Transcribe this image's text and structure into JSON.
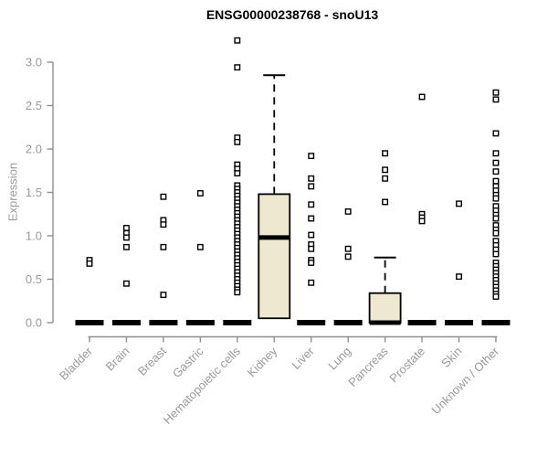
{
  "title": "ENSG00000238768 - snoU13",
  "colors": {
    "box_fill": "#ede8cf",
    "stroke": "#000000",
    "marker_fill": "#ffffff",
    "axis": "#8f8f8f",
    "label": "#9a9a9a",
    "title": "#000000",
    "background": "#ffffff"
  },
  "chart_data": {
    "type": "boxplot",
    "title": "ENSG00000238768 - snoU13",
    "xlabel": "",
    "ylabel": "Expression",
    "ylim": [
      0,
      3.3
    ],
    "yticks": [
      "0.0",
      "0.5",
      "1.0",
      "1.5",
      "2.0",
      "2.5",
      "3.0"
    ],
    "grid": false,
    "legend": "none",
    "categories": [
      "Bladder",
      "Brain",
      "Breast",
      "Gastric",
      "Hematopoietic cells",
      "Kidney",
      "Liver",
      "Lung",
      "Pancreas",
      "Prostate",
      "Skin",
      "Unknown / Other"
    ],
    "series": [
      {
        "name": "Bladder",
        "q1": 0,
        "median": 0,
        "q3": 0,
        "outliers": [
          0.72,
          0.68
        ]
      },
      {
        "name": "Brain",
        "q1": 0,
        "median": 0,
        "q3": 0,
        "outliers": [
          1.09,
          1.03,
          0.98,
          0.87,
          0.45
        ]
      },
      {
        "name": "Breast",
        "q1": 0,
        "median": 0,
        "q3": 0,
        "outliers": [
          1.45,
          1.18,
          1.13,
          0.87,
          0.32
        ]
      },
      {
        "name": "Gastric",
        "q1": 0,
        "median": 0,
        "q3": 0,
        "outliers": [
          1.49,
          0.87
        ]
      },
      {
        "name": "Hematopoietic cells",
        "q1": 0,
        "median": 0,
        "q3": 0,
        "outliers": [
          3.25,
          2.94,
          2.13,
          2.08,
          1.82,
          1.77,
          1.72,
          1.58,
          1.54,
          1.5,
          1.46,
          1.42,
          1.38,
          1.34,
          1.3,
          1.26,
          1.22,
          1.18,
          1.14,
          1.1,
          1.06,
          1.02,
          0.98,
          0.94,
          0.9,
          0.86,
          0.82,
          0.78,
          0.74,
          0.7,
          0.66,
          0.62,
          0.58,
          0.54,
          0.5,
          0.46,
          0.42,
          0.38,
          0.35
        ]
      },
      {
        "name": "Kidney",
        "q1": 0.05,
        "median": 0.98,
        "q3": 1.48,
        "whisker_high": 2.85,
        "outliers": []
      },
      {
        "name": "Liver",
        "q1": 0,
        "median": 0,
        "q3": 0,
        "outliers": [
          1.92,
          1.66,
          1.57,
          1.36,
          1.2,
          1.01,
          0.9,
          0.85,
          0.72,
          0.69,
          0.46
        ]
      },
      {
        "name": "Lung",
        "q1": 0,
        "median": 0,
        "q3": 0,
        "outliers": [
          1.28,
          0.85,
          0.76
        ]
      },
      {
        "name": "Pancreas",
        "q1": 0,
        "median": 0,
        "q3": 0.34,
        "whisker_high": 0.75,
        "outliers": [
          1.95,
          1.76,
          1.66,
          1.39
        ]
      },
      {
        "name": "Prostate",
        "q1": 0,
        "median": 0,
        "q3": 0,
        "outliers": [
          2.6,
          1.25,
          1.21,
          1.17
        ]
      },
      {
        "name": "Skin",
        "q1": 0,
        "median": 0,
        "q3": 0,
        "outliers": [
          1.37,
          0.53
        ]
      },
      {
        "name": "Unknown / Other",
        "q1": 0,
        "median": 0,
        "q3": 0,
        "outliers": [
          2.65,
          2.57,
          2.18,
          1.95,
          1.84,
          1.74,
          1.63,
          1.57,
          1.52,
          1.47,
          1.43,
          1.34,
          1.29,
          1.24,
          1.2,
          1.12,
          1.07,
          1.03,
          0.94,
          0.89,
          0.84,
          0.79,
          0.69,
          0.65,
          0.61,
          0.57,
          0.53,
          0.49,
          0.45,
          0.41,
          0.37,
          0.33,
          0.3
        ]
      }
    ]
  }
}
